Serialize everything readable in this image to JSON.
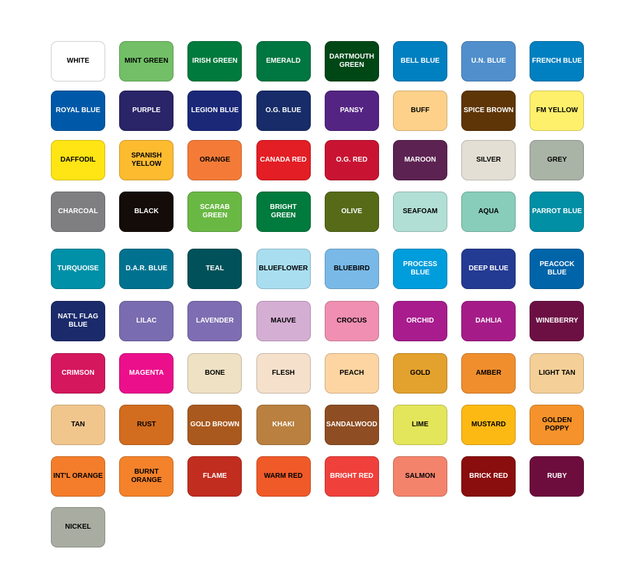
{
  "swatches": [
    {
      "name": "WHITE",
      "color": "#ffffff",
      "text": "#000"
    },
    {
      "name": "MINT GREEN",
      "color": "#72bf67",
      "text": "#000"
    },
    {
      "name": "IRISH GREEN",
      "color": "#007a3d",
      "text": "#fff"
    },
    {
      "name": "EMERALD",
      "color": "#007640",
      "text": "#fff"
    },
    {
      "name": "DARTMOUTH GREEN",
      "color": "#004716",
      "text": "#fff"
    },
    {
      "name": "BELL BLUE",
      "color": "#0080c0",
      "text": "#fff"
    },
    {
      "name": "U.N. BLUE",
      "color": "#518fcc",
      "text": "#fff"
    },
    {
      "name": "FRENCH BLUE",
      "color": "#0080c0",
      "text": "#fff"
    },
    {
      "name": "ROYAL BLUE",
      "color": "#0059a8",
      "text": "#fff"
    },
    {
      "name": "PURPLE",
      "color": "#2a2468",
      "text": "#fff"
    },
    {
      "name": "LEGION BLUE",
      "color": "#1b2878",
      "text": "#fff"
    },
    {
      "name": "O.G. BLUE",
      "color": "#172c68",
      "text": "#fff"
    },
    {
      "name": "PANSY",
      "color": "#542483",
      "text": "#fff"
    },
    {
      "name": "BUFF",
      "color": "#fed18a",
      "text": "#000"
    },
    {
      "name": "SPICE BROWN",
      "color": "#5e3506",
      "text": "#fff"
    },
    {
      "name": "FM YELLOW",
      "color": "#fff06c",
      "text": "#000"
    },
    {
      "name": "DAFFODIL",
      "color": "#ffe513",
      "text": "#000"
    },
    {
      "name": "SPANISH YELLOW",
      "color": "#fdbb30",
      "text": "#000"
    },
    {
      "name": "ORANGE",
      "color": "#f47b37",
      "text": "#000"
    },
    {
      "name": "CANADA RED",
      "color": "#e31e25",
      "text": "#fff"
    },
    {
      "name": "O.G. RED",
      "color": "#c81432",
      "text": "#fff"
    },
    {
      "name": "MAROON",
      "color": "#5c2352",
      "text": "#fff"
    },
    {
      "name": "SILVER",
      "color": "#e3dfd4",
      "text": "#000"
    },
    {
      "name": "GREY",
      "color": "#a9b3a6",
      "text": "#000"
    },
    {
      "name": "CHARCOAL",
      "color": "#7f7f81",
      "text": "#fff"
    },
    {
      "name": "BLACK",
      "color": "#140c08",
      "text": "#fff"
    },
    {
      "name": "SCARAB GREEN",
      "color": "#6ab844",
      "text": "#fff"
    },
    {
      "name": "BRIGHT GREEN",
      "color": "#007a3d",
      "text": "#fff"
    },
    {
      "name": "OLIVE",
      "color": "#566a18",
      "text": "#fff"
    },
    {
      "name": "SEAFOAM",
      "color": "#b1dfd5",
      "text": "#000"
    },
    {
      "name": "AQUA",
      "color": "#87cdb9",
      "text": "#000"
    },
    {
      "name": "PARROT BLUE",
      "color": "#008fa4",
      "text": "#fff"
    },
    {
      "name": "TURQUOISE",
      "color": "#0090a8",
      "text": "#fff"
    },
    {
      "name": "D.A.R. BLUE",
      "color": "#00728f",
      "text": "#fff"
    },
    {
      "name": "TEAL",
      "color": "#005159",
      "text": "#fff"
    },
    {
      "name": "BLUEFLOWER",
      "color": "#a9def0",
      "text": "#000"
    },
    {
      "name": "BLUEBIRD",
      "color": "#79b9e7",
      "text": "#000"
    },
    {
      "name": "PROCESS BLUE",
      "color": "#009ddc",
      "text": "#fff"
    },
    {
      "name": "DEEP BLUE",
      "color": "#243b93",
      "text": "#fff"
    },
    {
      "name": "PEACOCK BLUE",
      "color": "#0064a9",
      "text": "#fff"
    },
    {
      "name": "NAT'L FLAG BLUE",
      "color": "#1b2a6b",
      "text": "#fff"
    },
    {
      "name": "LILAC",
      "color": "#7a6cb0",
      "text": "#fff"
    },
    {
      "name": "LAVENDER",
      "color": "#7e6db2",
      "text": "#fff"
    },
    {
      "name": "MAUVE",
      "color": "#d5aed4",
      "text": "#000"
    },
    {
      "name": "CROCUS",
      "color": "#f08fb1",
      "text": "#000"
    },
    {
      "name": "ORCHID",
      "color": "#a81c8d",
      "text": "#fff"
    },
    {
      "name": "DAHLIA",
      "color": "#a51c88",
      "text": "#fff"
    },
    {
      "name": "WINEBERRY",
      "color": "#6c1043",
      "text": "#fff"
    },
    {
      "name": "CRIMSON",
      "color": "#d5175e",
      "text": "#fff"
    },
    {
      "name": "MAGENTA",
      "color": "#ec0f8c",
      "text": "#fff"
    },
    {
      "name": "BONE",
      "color": "#efe1c4",
      "text": "#000"
    },
    {
      "name": "FLESH",
      "color": "#f5e0cb",
      "text": "#000"
    },
    {
      "name": "PEACH",
      "color": "#fdd5a3",
      "text": "#000"
    },
    {
      "name": "GOLD",
      "color": "#e3a12e",
      "text": "#000"
    },
    {
      "name": "AMBER",
      "color": "#f08e2d",
      "text": "#000"
    },
    {
      "name": "LIGHT TAN",
      "color": "#f4cf98",
      "text": "#000"
    },
    {
      "name": "TAN",
      "color": "#f1c68d",
      "text": "#000"
    },
    {
      "name": "RUST",
      "color": "#d26c1e",
      "text": "#000"
    },
    {
      "name": "GOLD BROWN",
      "color": "#a9591e",
      "text": "#fff"
    },
    {
      "name": "KHAKI",
      "color": "#b98040",
      "text": "#fff"
    },
    {
      "name": "SANDALWOOD",
      "color": "#8e4d22",
      "text": "#fff"
    },
    {
      "name": "LIME",
      "color": "#e3e65a",
      "text": "#000"
    },
    {
      "name": "MUSTARD",
      "color": "#fdb913",
      "text": "#000"
    },
    {
      "name": "GOLDEN POPPY",
      "color": "#f5922b",
      "text": "#000"
    },
    {
      "name": "INT'L ORANGE",
      "color": "#f47d2b",
      "text": "#000"
    },
    {
      "name": "BURNT ORANGE",
      "color": "#f4822a",
      "text": "#000"
    },
    {
      "name": "FLAME",
      "color": "#c12d1f",
      "text": "#fff"
    },
    {
      "name": "WARM RED",
      "color": "#f05a28",
      "text": "#000"
    },
    {
      "name": "BRIGHT RED",
      "color": "#ef403c",
      "text": "#fff"
    },
    {
      "name": "SALMON",
      "color": "#f4836c",
      "text": "#000"
    },
    {
      "name": "BRICK RED",
      "color": "#8a0e0e",
      "text": "#fff"
    },
    {
      "name": "RUBY",
      "color": "#6d0d3d",
      "text": "#fff"
    },
    {
      "name": "NICKEL",
      "color": "#a9aca1",
      "text": "#000"
    }
  ]
}
